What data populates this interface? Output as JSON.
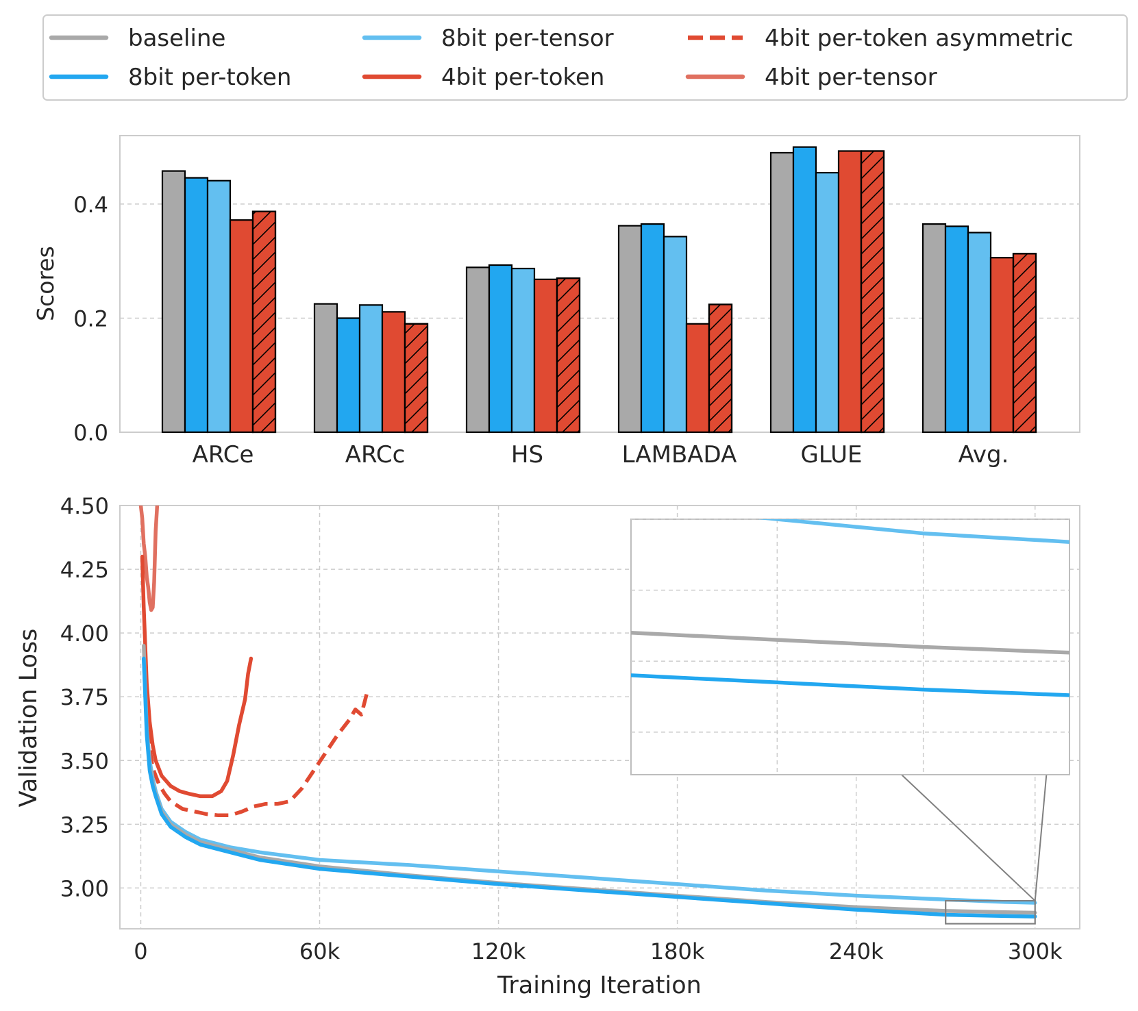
{
  "colors": {
    "baseline": "#a9a9a9",
    "8bit per-token": "#22a7f0",
    "8bit per-tensor": "#63bff0",
    "4bit per-token": "#e04a32",
    "4bit per-token asymmetric": "#e04a32",
    "4bit per-tensor": "#e07060"
  },
  "legend": {
    "placement": "top",
    "items": [
      {
        "label": "baseline",
        "style": "solid",
        "color": "#a9a9a9"
      },
      {
        "label": "8bit per-token",
        "style": "solid",
        "color": "#22a7f0"
      },
      {
        "label": "8bit per-tensor",
        "style": "solid",
        "color": "#63bff0"
      },
      {
        "label": "4bit per-token",
        "style": "solid",
        "color": "#e04a32"
      },
      {
        "label": "4bit per-token asymmetric",
        "style": "dashed",
        "color": "#e04a32"
      },
      {
        "label": "4bit per-tensor",
        "style": "solid",
        "color": "#e07060"
      }
    ]
  },
  "chart_data": [
    {
      "type": "bar",
      "ylabel": "Scores",
      "xlabel": "",
      "ylim": [
        0,
        0.52
      ],
      "yticks": [
        0.0,
        0.2,
        0.4
      ],
      "ytick_labels": [
        "0.0",
        "0.2",
        "0.4"
      ],
      "grid": true,
      "categories": [
        "ARCe",
        "ARCc",
        "HS",
        "LAMBADA",
        "GLUE",
        "Avg."
      ],
      "series": [
        {
          "name": "baseline",
          "values": [
            0.458,
            0.225,
            0.289,
            0.362,
            0.49,
            0.365
          ],
          "hatch": false
        },
        {
          "name": "8bit per-token",
          "values": [
            0.446,
            0.2,
            0.293,
            0.365,
            0.5,
            0.361
          ],
          "hatch": false
        },
        {
          "name": "8bit per-tensor",
          "values": [
            0.441,
            0.223,
            0.287,
            0.343,
            0.455,
            0.35
          ],
          "hatch": false
        },
        {
          "name": "4bit per-token",
          "values": [
            0.372,
            0.211,
            0.268,
            0.19,
            0.493,
            0.306
          ],
          "hatch": false
        },
        {
          "name": "4bit per-token asymmetric",
          "values": [
            0.387,
            0.19,
            0.27,
            0.224,
            0.493,
            0.313
          ],
          "hatch": true
        }
      ]
    },
    {
      "type": "line",
      "xlabel": "Training Iteration",
      "ylabel": "Validation Loss",
      "xlim": [
        -7000,
        315000
      ],
      "ylim": [
        2.84,
        4.5
      ],
      "xticks": [
        0,
        60000,
        120000,
        180000,
        240000,
        300000
      ],
      "xtick_labels": [
        "0",
        "60k",
        "120k",
        "180k",
        "240k",
        "300k"
      ],
      "yticks": [
        3.0,
        3.25,
        3.5,
        3.75,
        4.0,
        4.25,
        4.5
      ],
      "ytick_labels": [
        "3.00",
        "3.25",
        "3.50",
        "3.75",
        "4.00",
        "4.25",
        "4.50"
      ],
      "grid": true,
      "series": [
        {
          "name": "baseline",
          "style": "solid",
          "x": [
            1000,
            2000,
            3000,
            4000,
            5000,
            7000,
            10000,
            15000,
            20000,
            25000,
            30000,
            40000,
            60000,
            90000,
            120000,
            150000,
            180000,
            210000,
            240000,
            270000,
            290000,
            300000
          ],
          "y": [
            3.95,
            3.62,
            3.48,
            3.41,
            3.37,
            3.3,
            3.25,
            3.21,
            3.18,
            3.165,
            3.15,
            3.12,
            3.085,
            3.05,
            3.02,
            2.995,
            2.97,
            2.945,
            2.925,
            2.91,
            2.905,
            2.903
          ]
        },
        {
          "name": "8bit per-token",
          "style": "solid",
          "x": [
            1000,
            2000,
            3000,
            4000,
            5000,
            7000,
            10000,
            15000,
            20000,
            25000,
            30000,
            40000,
            60000,
            90000,
            120000,
            150000,
            180000,
            210000,
            240000,
            270000,
            290000,
            300000
          ],
          "y": [
            3.9,
            3.6,
            3.46,
            3.4,
            3.36,
            3.29,
            3.24,
            3.2,
            3.17,
            3.155,
            3.14,
            3.11,
            3.075,
            3.045,
            3.015,
            2.99,
            2.965,
            2.94,
            2.915,
            2.895,
            2.89,
            2.888
          ]
        },
        {
          "name": "8bit per-tensor",
          "style": "solid",
          "x": [
            1000,
            2000,
            3000,
            4000,
            5000,
            7000,
            10000,
            15000,
            20000,
            25000,
            30000,
            40000,
            60000,
            90000,
            120000,
            150000,
            180000,
            210000,
            240000,
            270000,
            290000,
            300000
          ],
          "y": [
            3.9,
            3.62,
            3.5,
            3.43,
            3.38,
            3.31,
            3.26,
            3.22,
            3.19,
            3.175,
            3.16,
            3.14,
            3.11,
            3.09,
            3.065,
            3.04,
            3.015,
            2.99,
            2.97,
            2.955,
            2.945,
            2.942
          ]
        },
        {
          "name": "4bit per-token",
          "style": "solid",
          "x": [
            500,
            1000,
            1500,
            2000,
            3000,
            4000,
            5000,
            7000,
            10000,
            13000,
            16000,
            20000,
            24000,
            27000,
            29000,
            31000,
            33000,
            35000,
            36000,
            37000
          ],
          "y": [
            4.3,
            4.1,
            3.95,
            3.8,
            3.65,
            3.56,
            3.5,
            3.44,
            3.4,
            3.38,
            3.37,
            3.36,
            3.36,
            3.38,
            3.42,
            3.52,
            3.64,
            3.74,
            3.84,
            3.9
          ]
        },
        {
          "name": "4bit per-token asymmetric",
          "style": "dashed",
          "x": [
            2000,
            3000,
            4000,
            6000,
            8000,
            10000,
            14000,
            18000,
            22000,
            26000,
            30000,
            34000,
            38000,
            42000,
            46000,
            50000,
            54000,
            58000,
            62000,
            66000,
            70000,
            72000,
            74000,
            76000
          ],
          "y": [
            3.7,
            3.55,
            3.47,
            3.41,
            3.37,
            3.34,
            3.31,
            3.3,
            3.29,
            3.285,
            3.285,
            3.3,
            3.32,
            3.33,
            3.33,
            3.34,
            3.39,
            3.46,
            3.53,
            3.6,
            3.66,
            3.7,
            3.68,
            3.77
          ]
        },
        {
          "name": "4bit per-tensor",
          "style": "solid",
          "x": [
            0,
            500,
            1000,
            1500,
            2000,
            2500,
            3000,
            3500,
            4000,
            4500,
            5000,
            5500,
            6000
          ],
          "y": [
            4.5,
            4.45,
            4.35,
            4.3,
            4.22,
            4.18,
            4.12,
            4.09,
            4.1,
            4.2,
            4.4,
            4.5,
            4.6
          ]
        }
      ]
    }
  ]
}
